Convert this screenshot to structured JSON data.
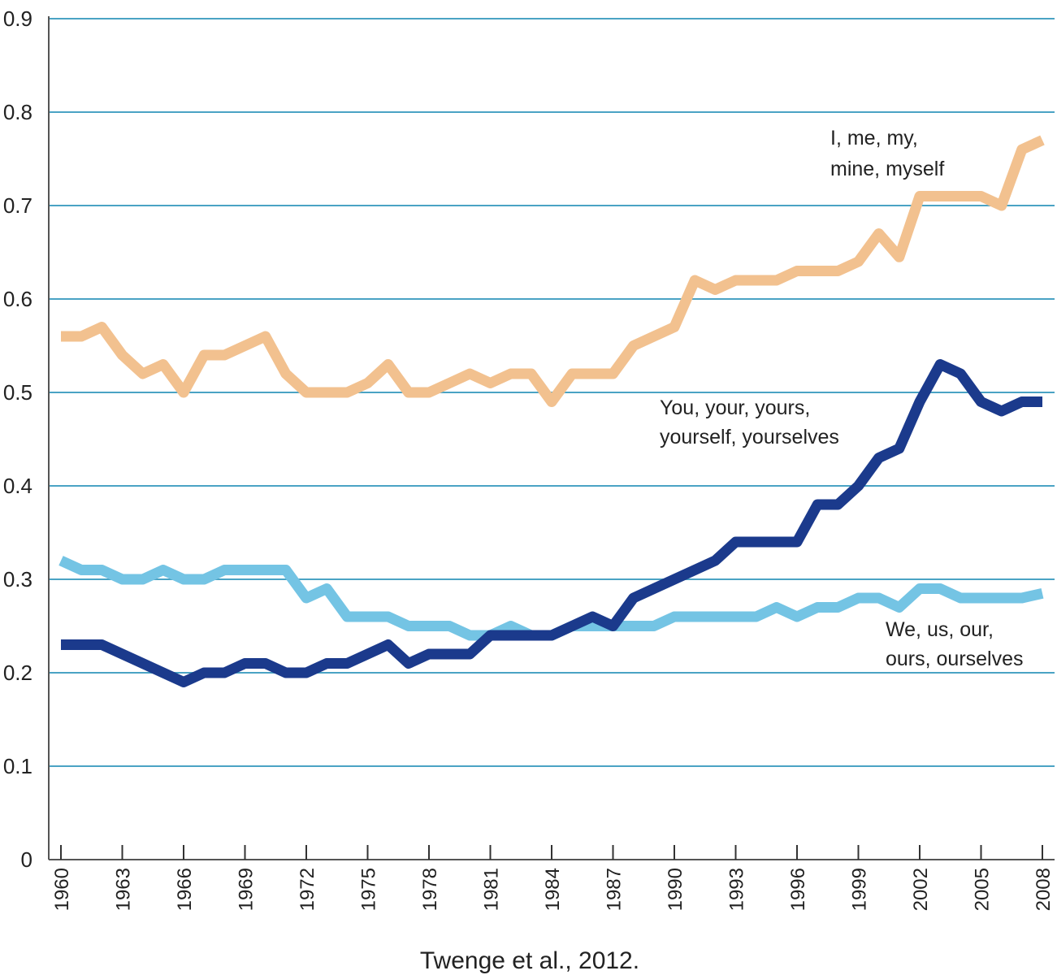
{
  "chart_data": {
    "type": "line",
    "title": "",
    "xlabel": "",
    "ylabel": "",
    "caption": "Twenge et al., 2012.",
    "ylim": [
      0,
      0.9
    ],
    "yticks": [
      "0",
      "0.1",
      "0.2",
      "0.3",
      "0.4",
      "0.5",
      "0.6",
      "0.7",
      "0.8",
      "0.9"
    ],
    "xlim": [
      1960,
      2008
    ],
    "xticks": [
      "1960",
      "1963",
      "1966",
      "1969",
      "1972",
      "1975",
      "1978",
      "1981",
      "1984",
      "1987",
      "1990",
      "1993",
      "1996",
      "1999",
      "2002",
      "2005",
      "2008"
    ],
    "grid": true,
    "series": [
      {
        "name": "I, me, my, mine, myself",
        "label_lines": [
          "I, me, my,",
          "mine, myself"
        ],
        "color": "#f2c18f",
        "x": [
          1960,
          1961,
          1962,
          1963,
          1964,
          1965,
          1966,
          1967,
          1968,
          1969,
          1970,
          1971,
          1972,
          1973,
          1974,
          1975,
          1976,
          1977,
          1978,
          1979,
          1980,
          1981,
          1982,
          1983,
          1984,
          1985,
          1986,
          1987,
          1988,
          1989,
          1990,
          1991,
          1992,
          1993,
          1994,
          1995,
          1996,
          1997,
          1998,
          1999,
          2000,
          2001,
          2002,
          2003,
          2004,
          2005,
          2006,
          2007,
          2008
        ],
        "values": [
          0.56,
          0.56,
          0.57,
          0.54,
          0.52,
          0.53,
          0.5,
          0.54,
          0.54,
          0.55,
          0.56,
          0.52,
          0.5,
          0.5,
          0.5,
          0.51,
          0.53,
          0.5,
          0.5,
          0.51,
          0.52,
          0.51,
          0.52,
          0.52,
          0.49,
          0.52,
          0.52,
          0.52,
          0.55,
          0.56,
          0.57,
          0.62,
          0.61,
          0.62,
          0.62,
          0.62,
          0.63,
          0.63,
          0.63,
          0.64,
          0.67,
          0.645,
          0.71,
          0.71,
          0.71,
          0.71,
          0.7,
          0.76,
          0.77
        ]
      },
      {
        "name": "You, your, yours, yourself, yourselves",
        "label_lines": [
          "You, your, yours,",
          "yourself, yourselves"
        ],
        "color": "#1b3a8c",
        "x": [
          1960,
          1961,
          1962,
          1963,
          1964,
          1965,
          1966,
          1967,
          1968,
          1969,
          1970,
          1971,
          1972,
          1973,
          1974,
          1975,
          1976,
          1977,
          1978,
          1979,
          1980,
          1981,
          1982,
          1983,
          1984,
          1985,
          1986,
          1987,
          1988,
          1989,
          1990,
          1991,
          1992,
          1993,
          1994,
          1995,
          1996,
          1997,
          1998,
          1999,
          2000,
          2001,
          2002,
          2003,
          2004,
          2005,
          2006,
          2007,
          2008
        ],
        "values": [
          0.23,
          0.23,
          0.23,
          0.22,
          0.21,
          0.2,
          0.19,
          0.2,
          0.2,
          0.21,
          0.21,
          0.2,
          0.2,
          0.21,
          0.21,
          0.22,
          0.23,
          0.21,
          0.22,
          0.22,
          0.22,
          0.24,
          0.24,
          0.24,
          0.24,
          0.25,
          0.26,
          0.25,
          0.28,
          0.29,
          0.3,
          0.31,
          0.32,
          0.34,
          0.34,
          0.34,
          0.34,
          0.38,
          0.38,
          0.4,
          0.43,
          0.44,
          0.49,
          0.53,
          0.52,
          0.49,
          0.48,
          0.49,
          0.49
        ]
      },
      {
        "name": "We, us, our, ours, ourselves",
        "label_lines": [
          "We, us, our,",
          "ours, ourselves"
        ],
        "color": "#74c4e4",
        "x": [
          1960,
          1961,
          1962,
          1963,
          1964,
          1965,
          1966,
          1967,
          1968,
          1969,
          1970,
          1971,
          1972,
          1973,
          1974,
          1975,
          1976,
          1977,
          1978,
          1979,
          1980,
          1981,
          1982,
          1983,
          1984,
          1985,
          1986,
          1987,
          1988,
          1989,
          1990,
          1991,
          1992,
          1993,
          1994,
          1995,
          1996,
          1997,
          1998,
          1999,
          2000,
          2001,
          2002,
          2003,
          2004,
          2005,
          2006,
          2007,
          2008
        ],
        "values": [
          0.32,
          0.31,
          0.31,
          0.3,
          0.3,
          0.31,
          0.3,
          0.3,
          0.31,
          0.31,
          0.31,
          0.31,
          0.28,
          0.29,
          0.26,
          0.26,
          0.26,
          0.25,
          0.25,
          0.25,
          0.24,
          0.24,
          0.25,
          0.24,
          0.24,
          0.25,
          0.25,
          0.25,
          0.25,
          0.25,
          0.26,
          0.26,
          0.26,
          0.26,
          0.26,
          0.27,
          0.26,
          0.27,
          0.27,
          0.28,
          0.28,
          0.27,
          0.29,
          0.29,
          0.28,
          0.28,
          0.28,
          0.28,
          0.285
        ]
      }
    ]
  }
}
